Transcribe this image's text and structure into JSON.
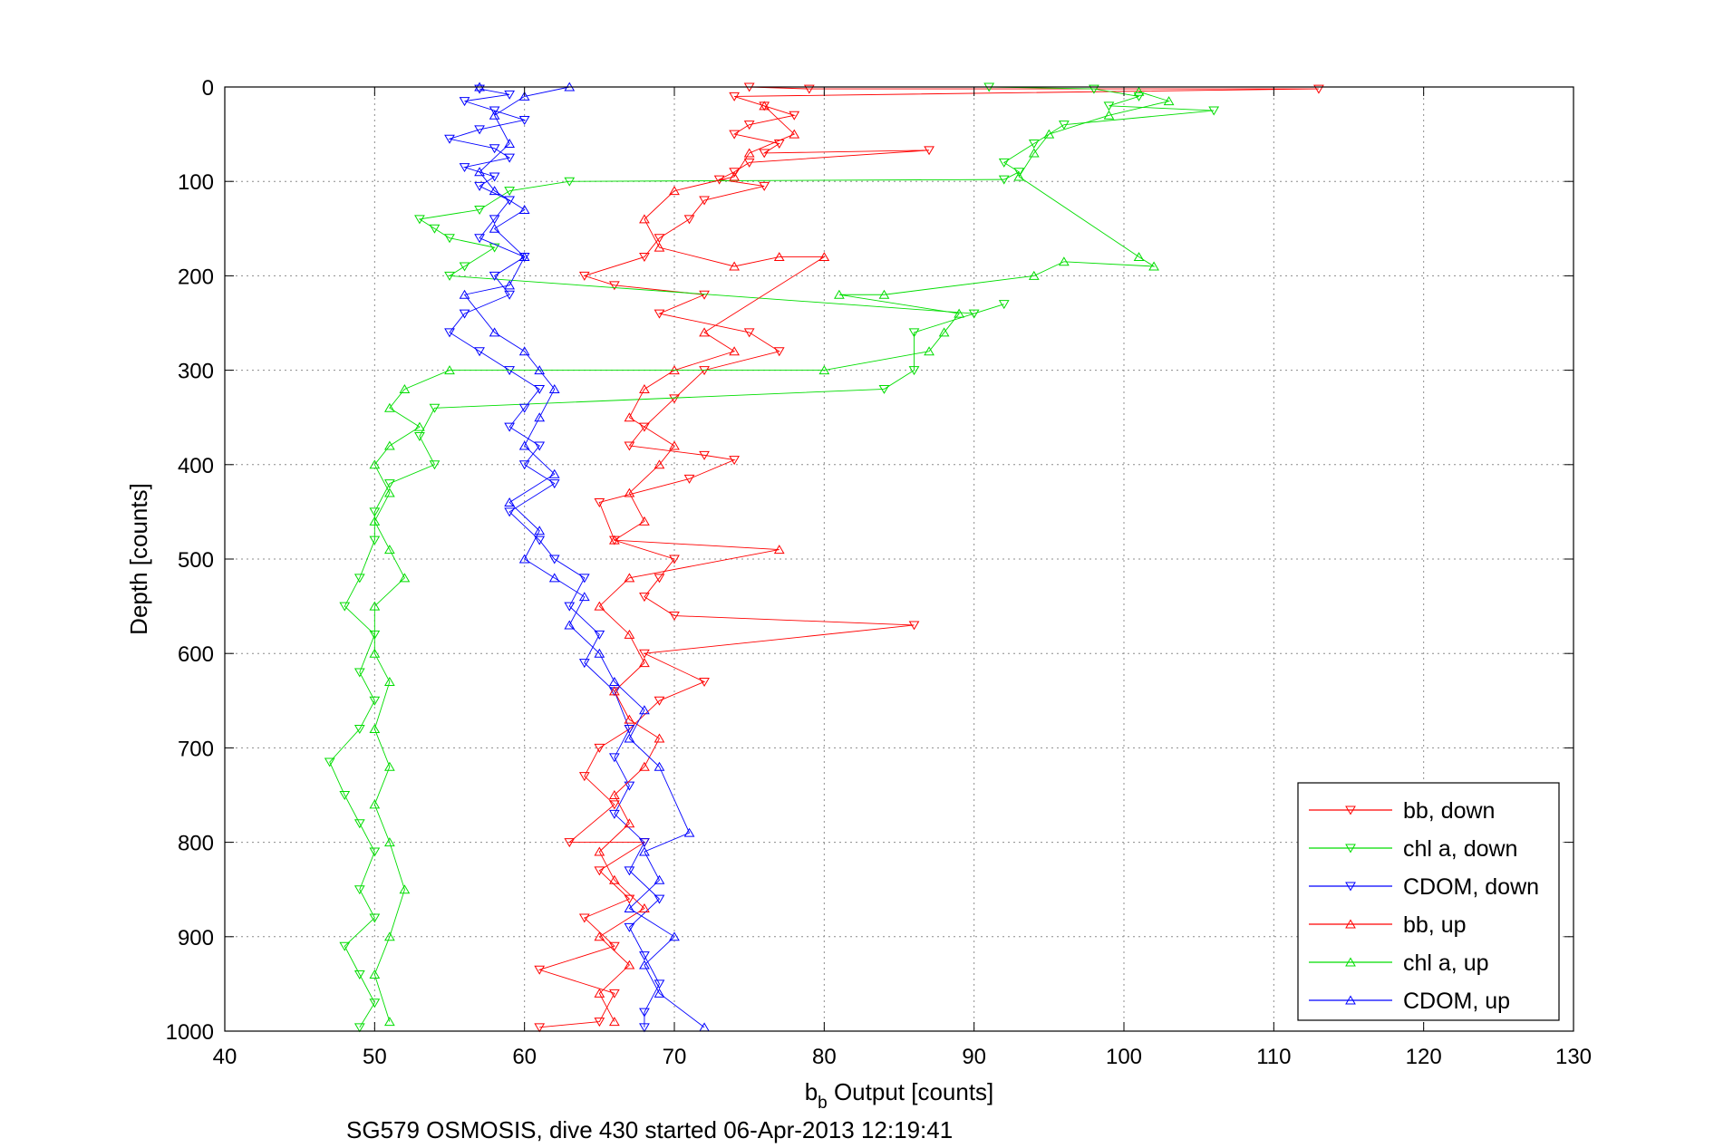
{
  "chart_data": {
    "type": "scatter",
    "xlabel_main": "b",
    "xlabel_sub": "b",
    "xlabel_rest": " Output [counts]",
    "ylabel": "Depth [counts]",
    "caption": "SG579 OSMOSIS, dive 430 started 06-Apr-2013 12:19:41",
    "xlim": [
      40,
      130
    ],
    "ylim": [
      0,
      1000
    ],
    "y_reversed": true,
    "grid": true,
    "legend_position": "bottom-right",
    "xticks": [
      "40",
      "50",
      "60",
      "70",
      "80",
      "90",
      "100",
      "110",
      "120",
      "130"
    ],
    "yticks": [
      "0",
      "100",
      "200",
      "300",
      "400",
      "500",
      "600",
      "700",
      "800",
      "900",
      "1000"
    ],
    "series": [
      {
        "name": "bb, down",
        "color": "#ff0000",
        "marker": "triangle-down",
        "points": [
          [
            75,
            0
          ],
          [
            79,
            2
          ],
          [
            113,
            2
          ],
          [
            74,
            10
          ],
          [
            76,
            20
          ],
          [
            78,
            30
          ],
          [
            75,
            40
          ],
          [
            74,
            50
          ],
          [
            77,
            60
          ],
          [
            76,
            70
          ],
          [
            87,
            67
          ],
          [
            75,
            80
          ],
          [
            74,
            90
          ],
          [
            73,
            98
          ],
          [
            76,
            105
          ],
          [
            72,
            120
          ],
          [
            71,
            140
          ],
          [
            69,
            160
          ],
          [
            68,
            180
          ],
          [
            64,
            200
          ],
          [
            66,
            210
          ],
          [
            72,
            220
          ],
          [
            69,
            240
          ],
          [
            75,
            260
          ],
          [
            77,
            280
          ],
          [
            72,
            300
          ],
          [
            70,
            330
          ],
          [
            68,
            360
          ],
          [
            67,
            380
          ],
          [
            72,
            390
          ],
          [
            74,
            395
          ],
          [
            71,
            415
          ],
          [
            65,
            440
          ],
          [
            66,
            480
          ],
          [
            70,
            500
          ],
          [
            69,
            520
          ],
          [
            68,
            540
          ],
          [
            70,
            560
          ],
          [
            86,
            570
          ],
          [
            68,
            600
          ],
          [
            72,
            630
          ],
          [
            69,
            650
          ],
          [
            67,
            680
          ],
          [
            65,
            700
          ],
          [
            64,
            730
          ],
          [
            66,
            760
          ],
          [
            63,
            800
          ],
          [
            68,
            800
          ],
          [
            65,
            830
          ],
          [
            67,
            860
          ],
          [
            64,
            880
          ],
          [
            66,
            910
          ],
          [
            61,
            935
          ],
          [
            66,
            960
          ],
          [
            65,
            990
          ],
          [
            61,
            996
          ]
        ]
      },
      {
        "name": "chl a, down",
        "color": "#00dd00",
        "marker": "triangle-down",
        "points": [
          [
            91,
            0
          ],
          [
            98,
            2
          ],
          [
            101,
            10
          ],
          [
            99,
            20
          ],
          [
            106,
            25
          ],
          [
            96,
            40
          ],
          [
            94,
            60
          ],
          [
            92,
            80
          ],
          [
            93,
            90
          ],
          [
            92,
            98
          ],
          [
            63,
            100
          ],
          [
            59,
            110
          ],
          [
            57,
            130
          ],
          [
            53,
            140
          ],
          [
            54,
            150
          ],
          [
            55,
            160
          ],
          [
            58,
            170
          ],
          [
            56,
            190
          ],
          [
            55,
            200
          ],
          [
            90,
            240
          ],
          [
            92,
            230
          ],
          [
            86,
            260
          ],
          [
            86,
            300
          ],
          [
            84,
            320
          ],
          [
            54,
            340
          ],
          [
            53,
            370
          ],
          [
            54,
            400
          ],
          [
            51,
            420
          ],
          [
            50,
            450
          ],
          [
            50,
            480
          ],
          [
            49,
            520
          ],
          [
            48,
            550
          ],
          [
            50,
            580
          ],
          [
            49,
            620
          ],
          [
            50,
            650
          ],
          [
            49,
            680
          ],
          [
            47,
            715
          ],
          [
            48,
            750
          ],
          [
            49,
            780
          ],
          [
            50,
            810
          ],
          [
            49,
            850
          ],
          [
            50,
            880
          ],
          [
            48,
            910
          ],
          [
            49,
            940
          ],
          [
            50,
            970
          ],
          [
            49,
            996
          ]
        ]
      },
      {
        "name": "CDOM, down",
        "color": "#0000ff",
        "marker": "triangle-down",
        "points": [
          [
            57,
            2
          ],
          [
            59,
            8
          ],
          [
            56,
            15
          ],
          [
            58,
            25
          ],
          [
            60,
            35
          ],
          [
            57,
            45
          ],
          [
            55,
            55
          ],
          [
            58,
            65
          ],
          [
            59,
            75
          ],
          [
            56,
            85
          ],
          [
            58,
            95
          ],
          [
            57,
            105
          ],
          [
            59,
            120
          ],
          [
            58,
            140
          ],
          [
            57,
            160
          ],
          [
            60,
            180
          ],
          [
            58,
            200
          ],
          [
            59,
            220
          ],
          [
            56,
            240
          ],
          [
            55,
            260
          ],
          [
            57,
            280
          ],
          [
            59,
            300
          ],
          [
            61,
            320
          ],
          [
            60,
            340
          ],
          [
            59,
            360
          ],
          [
            61,
            380
          ],
          [
            60,
            400
          ],
          [
            62,
            420
          ],
          [
            59,
            450
          ],
          [
            61,
            480
          ],
          [
            62,
            500
          ],
          [
            64,
            520
          ],
          [
            63,
            550
          ],
          [
            65,
            580
          ],
          [
            64,
            610
          ],
          [
            66,
            640
          ],
          [
            67,
            680
          ],
          [
            66,
            710
          ],
          [
            67,
            740
          ],
          [
            66,
            770
          ],
          [
            68,
            800
          ],
          [
            67,
            830
          ],
          [
            69,
            860
          ],
          [
            67,
            890
          ],
          [
            68,
            920
          ],
          [
            69,
            950
          ],
          [
            68,
            980
          ],
          [
            68,
            996
          ]
        ]
      },
      {
        "name": "bb, up",
        "color": "#ff0000",
        "marker": "triangle-up",
        "points": [
          [
            76,
            20
          ],
          [
            78,
            50
          ],
          [
            75,
            70
          ],
          [
            74,
            95
          ],
          [
            70,
            110
          ],
          [
            68,
            140
          ],
          [
            69,
            170
          ],
          [
            74,
            190
          ],
          [
            77,
            180
          ],
          [
            80,
            180
          ],
          [
            72,
            260
          ],
          [
            74,
            280
          ],
          [
            70,
            300
          ],
          [
            68,
            320
          ],
          [
            67,
            350
          ],
          [
            70,
            380
          ],
          [
            69,
            400
          ],
          [
            67,
            430
          ],
          [
            68,
            460
          ],
          [
            66,
            480
          ],
          [
            77,
            490
          ],
          [
            67,
            520
          ],
          [
            65,
            550
          ],
          [
            67,
            580
          ],
          [
            68,
            610
          ],
          [
            66,
            640
          ],
          [
            67,
            670
          ],
          [
            69,
            690
          ],
          [
            68,
            720
          ],
          [
            66,
            750
          ],
          [
            67,
            780
          ],
          [
            65,
            810
          ],
          [
            66,
            840
          ],
          [
            68,
            870
          ],
          [
            65,
            900
          ],
          [
            67,
            930
          ],
          [
            65,
            960
          ],
          [
            66,
            990
          ]
        ]
      },
      {
        "name": "chl a, up",
        "color": "#00dd00",
        "marker": "triangle-up",
        "points": [
          [
            101,
            5
          ],
          [
            103,
            15
          ],
          [
            99,
            30
          ],
          [
            95,
            50
          ],
          [
            94,
            70
          ],
          [
            93,
            95
          ],
          [
            101,
            180
          ],
          [
            102,
            190
          ],
          [
            96,
            185
          ],
          [
            94,
            200
          ],
          [
            84,
            220
          ],
          [
            81,
            220
          ],
          [
            89,
            240
          ],
          [
            88,
            260
          ],
          [
            87,
            280
          ],
          [
            80,
            300
          ],
          [
            55,
            300
          ],
          [
            52,
            320
          ],
          [
            51,
            340
          ],
          [
            53,
            360
          ],
          [
            51,
            380
          ],
          [
            50,
            400
          ],
          [
            51,
            430
          ],
          [
            50,
            460
          ],
          [
            51,
            490
          ],
          [
            52,
            520
          ],
          [
            50,
            550
          ],
          [
            50,
            600
          ],
          [
            51,
            630
          ],
          [
            50,
            680
          ],
          [
            51,
            720
          ],
          [
            50,
            760
          ],
          [
            51,
            800
          ],
          [
            52,
            850
          ],
          [
            51,
            900
          ],
          [
            50,
            940
          ],
          [
            51,
            990
          ]
        ]
      },
      {
        "name": "CDOM, up",
        "color": "#0000ff",
        "marker": "triangle-up",
        "points": [
          [
            57,
            0
          ],
          [
            63,
            0
          ],
          [
            60,
            10
          ],
          [
            58,
            30
          ],
          [
            59,
            60
          ],
          [
            57,
            90
          ],
          [
            58,
            110
          ],
          [
            60,
            130
          ],
          [
            58,
            150
          ],
          [
            60,
            180
          ],
          [
            59,
            210
          ],
          [
            56,
            220
          ],
          [
            58,
            260
          ],
          [
            60,
            280
          ],
          [
            61,
            300
          ],
          [
            62,
            320
          ],
          [
            61,
            350
          ],
          [
            60,
            380
          ],
          [
            62,
            410
          ],
          [
            59,
            440
          ],
          [
            61,
            470
          ],
          [
            60,
            500
          ],
          [
            62,
            520
          ],
          [
            64,
            540
          ],
          [
            63,
            570
          ],
          [
            65,
            600
          ],
          [
            66,
            630
          ],
          [
            68,
            660
          ],
          [
            67,
            690
          ],
          [
            69,
            720
          ],
          [
            71,
            790
          ],
          [
            68,
            810
          ],
          [
            69,
            840
          ],
          [
            67,
            870
          ],
          [
            70,
            900
          ],
          [
            68,
            930
          ],
          [
            69,
            960
          ],
          [
            72,
            996
          ]
        ]
      }
    ]
  }
}
